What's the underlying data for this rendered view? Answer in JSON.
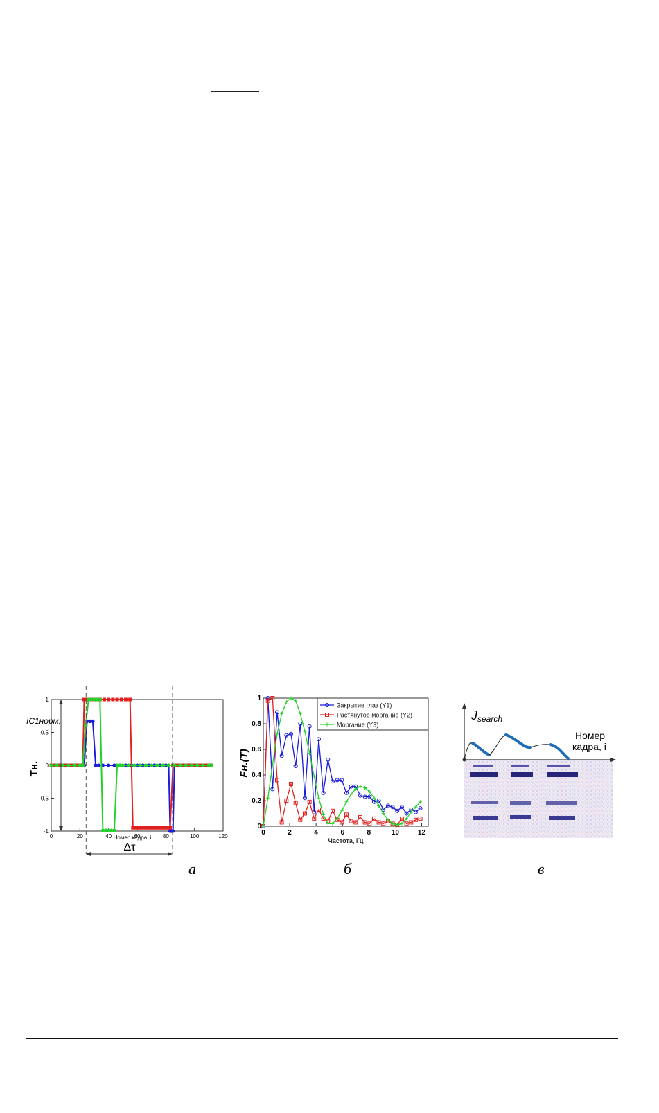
{
  "captions": {
    "a": "а",
    "b": "б",
    "c": "в"
  },
  "panel_a": {
    "ylabel": "Tн.",
    "xlabel": "Номер кадра, i",
    "annotation_left": "IC1норм.",
    "annotation_bottom": "Δτ"
  },
  "panel_c": {
    "ylabel": "Jsearch",
    "xlabel_line1": "Номер",
    "xlabel_line2": "кадра, i"
  },
  "chart_data": [
    {
      "type": "line",
      "xlabel": "Номер кадра, i",
      "ylabel": "Tн.",
      "xlim": [
        0,
        120
      ],
      "ylim": [
        -1,
        1
      ],
      "xticks": [
        0,
        20,
        40,
        60,
        80,
        100,
        120
      ],
      "yticks": [
        -1,
        -0.5,
        0,
        0.5,
        1
      ],
      "grid": false,
      "colors": {
        "blue": "#1a1adb",
        "red": "#e0201e",
        "green": "#22d12a"
      },
      "series": [
        {
          "color": "blue",
          "x": [
            0,
            2,
            4,
            6,
            8,
            10,
            12,
            14,
            16,
            18,
            20,
            22,
            23,
            25,
            27,
            29,
            31,
            33,
            36,
            40,
            44,
            48,
            52,
            56,
            60,
            64,
            68,
            72,
            76,
            80,
            82,
            83,
            84,
            85,
            86,
            88,
            90,
            92,
            94,
            96,
            98,
            100,
            102,
            104,
            106,
            108,
            110,
            112
          ],
          "y": [
            0,
            0,
            0,
            0,
            0,
            0,
            0,
            0,
            0,
            0,
            0,
            0,
            0,
            0.67,
            0.67,
            0.67,
            0,
            0,
            0,
            0,
            0,
            0,
            0,
            0,
            0,
            0,
            0,
            0,
            0,
            0,
            0,
            -1,
            -1,
            -1,
            0,
            0,
            0,
            0,
            0,
            0,
            0,
            0,
            0,
            0,
            0,
            0,
            0,
            0
          ]
        },
        {
          "color": "red",
          "x": [
            0,
            2,
            4,
            6,
            8,
            10,
            12,
            14,
            16,
            18,
            20,
            22,
            23,
            25,
            28,
            31,
            34,
            37,
            40,
            43,
            46,
            49,
            52,
            55,
            57,
            59,
            61,
            63,
            65,
            67,
            69,
            71,
            73,
            75,
            77,
            79,
            81,
            83,
            85,
            87,
            89,
            91,
            93,
            95,
            97,
            99,
            101,
            103,
            105,
            107,
            109,
            111
          ],
          "y": [
            0,
            0,
            0,
            0,
            0,
            0,
            0,
            0,
            0,
            0,
            0,
            0,
            1,
            1,
            1,
            1,
            1,
            1,
            1,
            1,
            1,
            1,
            1,
            1,
            -0.95,
            -0.95,
            -0.95,
            -0.95,
            -0.95,
            -0.95,
            -0.95,
            -0.95,
            -0.95,
            -0.95,
            -0.95,
            -0.95,
            -0.95,
            -0.95,
            0,
            0,
            0,
            0,
            0,
            0,
            0,
            0,
            0,
            0,
            0,
            0,
            0,
            0
          ]
        },
        {
          "color": "green",
          "x": [
            0,
            4,
            8,
            12,
            16,
            20,
            22,
            24,
            26,
            28,
            30,
            32,
            34,
            36,
            38,
            40,
            42,
            44,
            46,
            48,
            50,
            54,
            58,
            62,
            66,
            70,
            74,
            78,
            82,
            86,
            90,
            94,
            98,
            102,
            106,
            110,
            112
          ],
          "y": [
            0,
            0,
            0,
            0,
            0,
            0,
            0,
            0.6,
            1,
            1,
            1,
            1,
            1,
            -0.99,
            -0.99,
            -0.99,
            -0.99,
            -0.99,
            0,
            0,
            0,
            0,
            0,
            0,
            0,
            0,
            0,
            0,
            0,
            0,
            0,
            0,
            0,
            0,
            0,
            0,
            0
          ]
        }
      ]
    },
    {
      "type": "line",
      "xlabel": "Частота, Гц",
      "ylabel": "Fн.(T)",
      "xlim": [
        0,
        12.5
      ],
      "ylim": [
        0,
        1
      ],
      "xticks": [
        0,
        2,
        4,
        6,
        8,
        10,
        12
      ],
      "yticks": [
        0,
        0.2,
        0.4,
        0.6,
        0.8,
        1
      ],
      "grid": false,
      "legend_position": "top-right",
      "series": [
        {
          "name": "Закрытие глаз (Y1)",
          "color": "#1a1adb",
          "marker": "circle",
          "x": [
            0,
            0.35,
            0.7,
            1.05,
            1.4,
            1.75,
            2.1,
            2.45,
            2.8,
            3.15,
            3.5,
            3.85,
            4.2,
            4.55,
            4.9,
            5.25,
            5.6,
            5.95,
            6.3,
            6.65,
            7.0,
            7.35,
            7.7,
            8.05,
            8.4,
            8.75,
            9.1,
            9.45,
            9.8,
            10.15,
            10.5,
            10.85,
            11.2,
            11.55,
            11.9
          ],
          "y": [
            0,
            1,
            0.29,
            0.89,
            0.55,
            0.71,
            0.72,
            0.47,
            0.8,
            0.22,
            0.78,
            0.11,
            0.68,
            0.26,
            0.52,
            0.35,
            0.36,
            0.36,
            0.26,
            0.31,
            0.31,
            0.24,
            0.23,
            0.23,
            0.19,
            0.2,
            0.13,
            0.16,
            0.15,
            0.12,
            0.15,
            0.1,
            0.13,
            0.11,
            0.14
          ]
        },
        {
          "name": "Растянутое моргание (Y2)",
          "color": "#e0201e",
          "marker": "square",
          "x": [
            0,
            0.35,
            0.7,
            1.05,
            1.4,
            1.75,
            2.1,
            2.45,
            2.8,
            3.15,
            3.5,
            3.85,
            4.2,
            4.55,
            4.9,
            5.25,
            5.6,
            5.95,
            6.3,
            6.65,
            7.0,
            7.35,
            7.7,
            8.05,
            8.4,
            8.75,
            9.1,
            9.45,
            9.8,
            10.15,
            10.5,
            10.85,
            11.2,
            11.55,
            11.9
          ],
          "y": [
            0,
            0.98,
            1,
            0.36,
            0.03,
            0.2,
            0.33,
            0.18,
            0.05,
            0.1,
            0.19,
            0.06,
            0.13,
            0.06,
            0.04,
            0.12,
            0.05,
            0.03,
            0.09,
            0.04,
            0.03,
            0.07,
            0.03,
            0.02,
            0.06,
            0.03,
            0.02,
            0.04,
            0.02,
            0.01,
            0.06,
            0.02,
            0.03,
            0.05,
            0.06
          ]
        },
        {
          "name": "Моргание (Y3)",
          "color": "#22d12a",
          "marker": "plus",
          "x": [
            0,
            0.35,
            0.7,
            1.05,
            1.4,
            1.75,
            2.1,
            2.45,
            2.8,
            3.15,
            3.5,
            3.85,
            4.2,
            4.55,
            4.9,
            5.25,
            5.6,
            5.95,
            6.3,
            6.65,
            7.0,
            7.35,
            7.7,
            8.05,
            8.4,
            8.75,
            9.1,
            9.45,
            9.8,
            10.15,
            10.5,
            10.85,
            11.2,
            11.55,
            11.9
          ],
          "y": [
            0,
            0.22,
            0.48,
            0.72,
            0.88,
            0.97,
            1.0,
            0.98,
            0.88,
            0.74,
            0.57,
            0.39,
            0.22,
            0.09,
            0.02,
            0.02,
            0.06,
            0.12,
            0.19,
            0.25,
            0.29,
            0.31,
            0.3,
            0.27,
            0.22,
            0.16,
            0.1,
            0.05,
            0.02,
            0.01,
            0.02,
            0.06,
            0.11,
            0.15,
            0.19
          ]
        }
      ]
    }
  ]
}
